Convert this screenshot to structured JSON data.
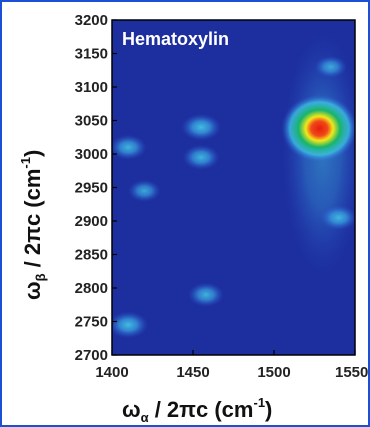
{
  "chart_data": {
    "type": "heatmap",
    "title": "Hematoxylin",
    "xlabel": {
      "main": "ω",
      "sub": "α",
      "rest": " / 2πc (cm",
      "sup": "-1",
      "close": ")"
    },
    "ylabel": {
      "main": "ω",
      "sub": "β",
      "rest": " / 2πc (cm",
      "sup": "-1",
      "close": ")"
    },
    "xlim": [
      1400,
      1550
    ],
    "ylim": [
      2700,
      3200
    ],
    "x_ticks": [
      "1400",
      "1450",
      "1500",
      "1550"
    ],
    "y_ticks": [
      "2700",
      "2750",
      "2800",
      "2850",
      "2900",
      "2950",
      "3000",
      "3050",
      "3100",
      "3150",
      "3200"
    ],
    "colorscale": [
      "#1b2f9c",
      "#2a5ad8",
      "#3ec2e6",
      "#17b46a",
      "#f2e81a",
      "#e81a10"
    ],
    "peaks": [
      {
        "x": 1528,
        "y": 3038,
        "intensity": 1.0
      },
      {
        "x": 1455,
        "y": 3040,
        "intensity": 0.35
      },
      {
        "x": 1455,
        "y": 2995,
        "intensity": 0.3
      },
      {
        "x": 1410,
        "y": 3010,
        "intensity": 0.3
      },
      {
        "x": 1420,
        "y": 2945,
        "intensity": 0.22
      },
      {
        "x": 1410,
        "y": 2745,
        "intensity": 0.35
      },
      {
        "x": 1458,
        "y": 2790,
        "intensity": 0.28
      },
      {
        "x": 1535,
        "y": 3130,
        "intensity": 0.22
      },
      {
        "x": 1540,
        "y": 2905,
        "intensity": 0.3
      }
    ]
  }
}
